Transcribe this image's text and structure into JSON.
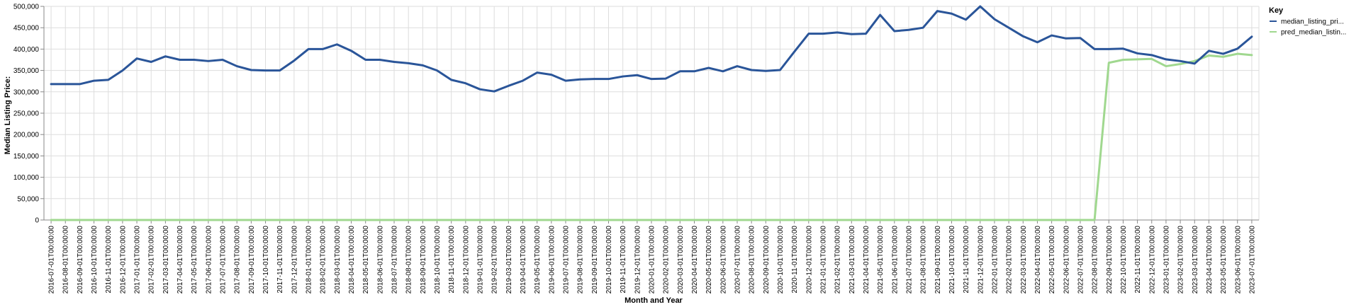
{
  "chart_data": {
    "type": "line",
    "xlabel": "Month and Year",
    "ylabel": "Median Listing Price:",
    "ylim": [
      0,
      500000
    ],
    "yticks": [
      "0",
      "50,000",
      "100,000",
      "150,000",
      "200,000",
      "250,000",
      "300,000",
      "350,000",
      "400,000",
      "450,000",
      "500,000"
    ],
    "ytick_values": [
      0,
      50000,
      100000,
      150000,
      200000,
      250000,
      300000,
      350000,
      400000,
      450000,
      500000
    ],
    "grid": true,
    "legend": {
      "title": "Key",
      "position": "right"
    },
    "x": [
      "2016-07-01T00:00:00",
      "2016-08-01T00:00:00",
      "2016-09-01T00:00:00",
      "2016-10-01T00:00:00",
      "2016-11-01T00:00:00",
      "2016-12-01T00:00:00",
      "2017-01-01T00:00:00",
      "2017-02-01T00:00:00",
      "2017-03-01T00:00:00",
      "2017-04-01T00:00:00",
      "2017-05-01T00:00:00",
      "2017-06-01T00:00:00",
      "2017-07-01T00:00:00",
      "2017-08-01T00:00:00",
      "2017-09-01T00:00:00",
      "2017-10-01T00:00:00",
      "2017-11-01T00:00:00",
      "2017-12-01T00:00:00",
      "2018-01-01T00:00:00",
      "2018-02-01T00:00:00",
      "2018-03-01T00:00:00",
      "2018-04-01T00:00:00",
      "2018-05-01T00:00:00",
      "2018-06-01T00:00:00",
      "2018-07-01T00:00:00",
      "2018-08-01T00:00:00",
      "2018-09-01T00:00:00",
      "2018-10-01T00:00:00",
      "2018-11-01T00:00:00",
      "2018-12-01T00:00:00",
      "2019-01-01T00:00:00",
      "2019-02-01T00:00:00",
      "2019-03-01T00:00:00",
      "2019-04-01T00:00:00",
      "2019-05-01T00:00:00",
      "2019-06-01T00:00:00",
      "2019-07-01T00:00:00",
      "2019-08-01T00:00:00",
      "2019-09-01T00:00:00",
      "2019-10-01T00:00:00",
      "2019-11-01T00:00:00",
      "2019-12-01T00:00:00",
      "2020-01-01T00:00:00",
      "2020-02-01T00:00:00",
      "2020-03-01T00:00:00",
      "2020-04-01T00:00:00",
      "2020-05-01T00:00:00",
      "2020-06-01T00:00:00",
      "2020-07-01T00:00:00",
      "2020-08-01T00:00:00",
      "2020-09-01T00:00:00",
      "2020-10-01T00:00:00",
      "2020-11-01T00:00:00",
      "2020-12-01T00:00:00",
      "2021-01-01T00:00:00",
      "2021-02-01T00:00:00",
      "2021-03-01T00:00:00",
      "2021-04-01T00:00:00",
      "2021-05-01T00:00:00",
      "2021-06-01T00:00:00",
      "2021-07-01T00:00:00",
      "2021-08-01T00:00:00",
      "2021-09-01T00:00:00",
      "2021-10-01T00:00:00",
      "2021-11-01T00:00:00",
      "2021-12-01T00:00:00",
      "2022-01-01T00:00:00",
      "2022-02-01T00:00:00",
      "2022-03-01T00:00:00",
      "2022-04-01T00:00:00",
      "2022-05-01T00:00:00",
      "2022-06-01T00:00:00",
      "2022-07-01T00:00:00",
      "2022-08-01T00:00:00",
      "2022-09-01T00:00:00",
      "2022-10-01T00:00:00",
      "2022-11-01T00:00:00",
      "2022-12-01T00:00:00",
      "2023-01-01T00:00:00",
      "2023-02-01T00:00:00",
      "2023-03-01T00:00:00",
      "2023-04-01T00:00:00",
      "2023-05-01T00:00:00",
      "2023-06-01T00:00:00",
      "2023-07-01T00:00:00"
    ],
    "series": [
      {
        "name": "median_listing_pri...",
        "color": "#2a5599",
        "values": [
          318000,
          318000,
          318000,
          326000,
          328000,
          350000,
          378000,
          370000,
          383000,
          375000,
          375000,
          372000,
          375000,
          360000,
          351000,
          350000,
          350000,
          373000,
          400000,
          400000,
          411000,
          396000,
          375000,
          375000,
          370000,
          367000,
          362000,
          350000,
          328000,
          320000,
          306000,
          301000,
          314000,
          326000,
          345000,
          340000,
          326000,
          329000,
          330000,
          330000,
          336000,
          339000,
          330000,
          331000,
          348000,
          348000,
          356000,
          348000,
          360000,
          351000,
          349000,
          351000,
          394000,
          436000,
          436000,
          439000,
          435000,
          436000,
          480000,
          442000,
          445000,
          450000,
          489000,
          483000,
          469000,
          500000,
          470000,
          450000,
          430000,
          416000,
          432000,
          425000,
          426000,
          400000,
          400000,
          401000,
          390000,
          386000,
          376000,
          372000,
          366000,
          396000,
          389000,
          401000,
          429000
        ]
      },
      {
        "name": "pred_median_listin...",
        "color": "#a0d88f",
        "values": [
          0,
          0,
          0,
          0,
          0,
          0,
          0,
          0,
          0,
          0,
          0,
          0,
          0,
          0,
          0,
          0,
          0,
          0,
          0,
          0,
          0,
          0,
          0,
          0,
          0,
          0,
          0,
          0,
          0,
          0,
          0,
          0,
          0,
          0,
          0,
          0,
          0,
          0,
          0,
          0,
          0,
          0,
          0,
          0,
          0,
          0,
          0,
          0,
          0,
          0,
          0,
          0,
          0,
          0,
          0,
          0,
          0,
          0,
          0,
          0,
          0,
          0,
          0,
          0,
          0,
          0,
          0,
          0,
          0,
          0,
          0,
          0,
          0,
          0,
          368000,
          375000,
          376000,
          377000,
          360000,
          365000,
          372000,
          385000,
          382000,
          389000,
          386000
        ]
      }
    ]
  }
}
